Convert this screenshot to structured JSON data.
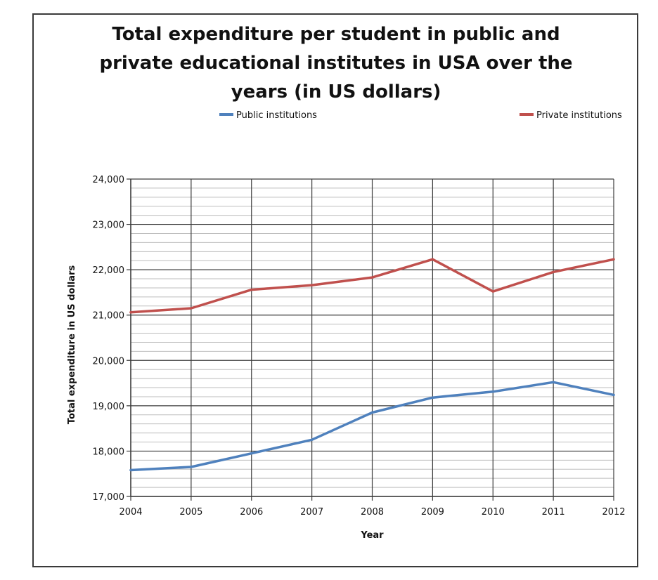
{
  "chart_data": {
    "type": "line",
    "title_lines": [
      "Total expenditure per student in public and",
      "private educational institutes in USA over the",
      "years (in US dollars)"
    ],
    "xlabel": "Year",
    "ylabel": "Total expenditure in US dollars",
    "x": [
      2004,
      2005,
      2006,
      2007,
      2008,
      2009,
      2010,
      2011,
      2012
    ],
    "x_tick_labels": [
      "2004",
      "2005",
      "2006",
      "2007",
      "2008",
      "2009",
      "2010",
      "2011",
      "2012"
    ],
    "ylim": [
      17000,
      24000
    ],
    "y_ticks": [
      17000,
      18000,
      19000,
      20000,
      21000,
      22000,
      23000,
      24000
    ],
    "y_tick_labels": [
      "17,000",
      "18,000",
      "19,000",
      "20,000",
      "21,000",
      "22,000",
      "23,000",
      "24,000"
    ],
    "y_minor_step": 200,
    "grid": true,
    "legend_position": "top",
    "series": [
      {
        "name": "Public institutions",
        "color": "#4f81bd",
        "values": [
          17580,
          17650,
          17950,
          18250,
          18850,
          19180,
          19310,
          19520,
          19240
        ]
      },
      {
        "name": "Private institutions",
        "color": "#c0504d",
        "values": [
          21060,
          21150,
          21560,
          21660,
          21830,
          22230,
          21520,
          21950,
          22230
        ]
      }
    ]
  }
}
